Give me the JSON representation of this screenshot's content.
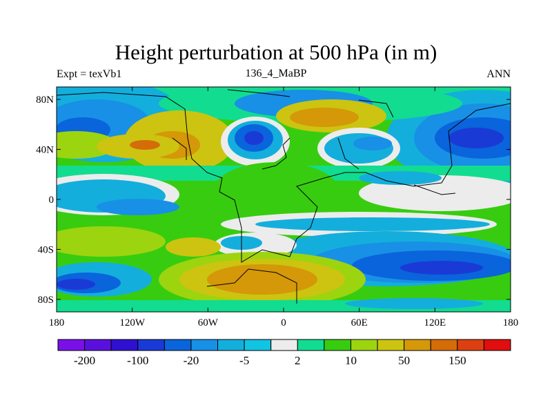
{
  "title": "Height perturbation at 500 hPa (in m)",
  "subtitle_left": "Expt = texVb1",
  "subtitle_center": "136_4_MaBP",
  "subtitle_right": "ANN",
  "map": {
    "projection": "cylindrical-equidistant",
    "lon_range": [
      -180,
      180
    ],
    "lat_range": [
      -90,
      90
    ],
    "x_tick_labels": [
      "180",
      "120W",
      "60W",
      "0",
      "60E",
      "120E",
      "180"
    ],
    "y_tick_labels": [
      "80N",
      "40N",
      "0",
      "40S",
      "80S"
    ]
  },
  "colorbar": {
    "colors": [
      "#7a10e8",
      "#5a10dd",
      "#3010d0",
      "#1a3ad6",
      "#0a64dc",
      "#1890e6",
      "#14aedc",
      "#10c4e2",
      "#ececec",
      "#12dc90",
      "#38cc10",
      "#9cd410",
      "#ccc410",
      "#d49808",
      "#d46c08",
      "#dc4010",
      "#e00e0e"
    ],
    "labels": [
      "-200",
      "-100",
      "-20",
      "-5",
      "2",
      "10",
      "50",
      "150"
    ]
  }
}
